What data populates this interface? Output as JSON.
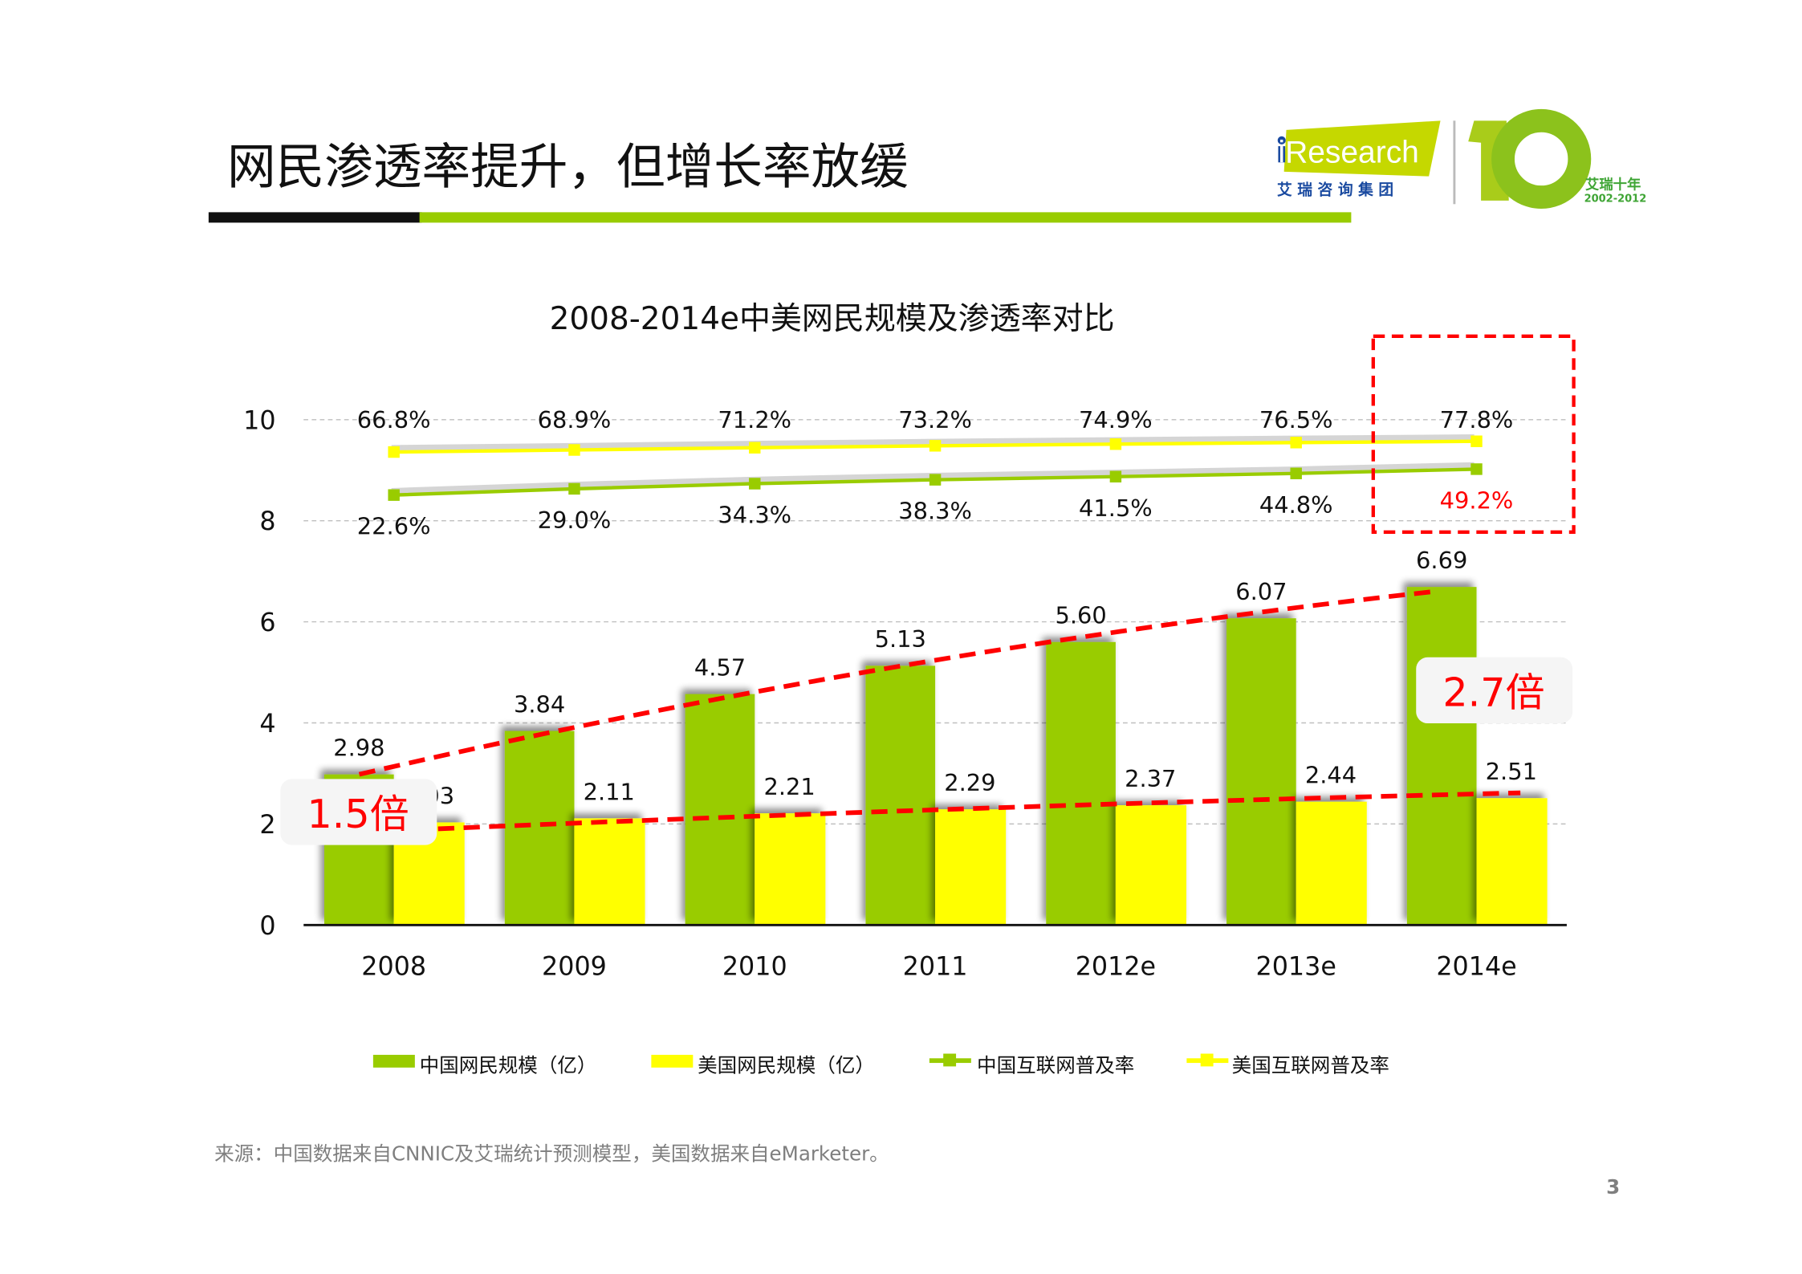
{
  "slide": {
    "title": "网民渗透率提升，但增长率放缓",
    "page_number": "3",
    "source": "来源：中国数据来自CNNIC及艾瑞统计预测模型，美国数据来自eMarketer。",
    "logo": {
      "brand": "iResearch",
      "brand_cn": "艾 瑞 咨 询 集 团",
      "anniversary": "10",
      "anniversary_cn": "艾瑞十年",
      "anniversary_years": "2002-2012"
    }
  },
  "colors": {
    "china": "#99cc00",
    "us": "#ffff00",
    "highlight": "#ff0000",
    "title_bar_dark": "#111111",
    "title_bar_green": "#99cc00"
  },
  "chart_data": {
    "type": "bar",
    "title": "2008-2014e中美网民规模及渗透率对比",
    "categories": [
      "2008",
      "2009",
      "2010",
      "2011",
      "2012e",
      "2013e",
      "2014e"
    ],
    "ylim": [
      0,
      10
    ],
    "yticks": [
      "0",
      "2",
      "4",
      "6",
      "8",
      "10"
    ],
    "grid": true,
    "legend_placement": "bottom",
    "series": [
      {
        "name": "中国网民规模（亿）",
        "kind": "bar",
        "color": "#99cc00",
        "values": [
          2.98,
          3.84,
          4.57,
          5.13,
          5.6,
          6.07,
          6.69
        ],
        "labels": [
          "2.98",
          "3.84",
          "4.57",
          "5.13",
          "5.60",
          "6.07",
          "6.69"
        ]
      },
      {
        "name": "美国网民规模（亿）",
        "kind": "bar",
        "color": "#ffff00",
        "values": [
          2.03,
          2.11,
          2.21,
          2.29,
          2.37,
          2.44,
          2.51
        ],
        "labels": [
          "2.03",
          "2.11",
          "2.21",
          "2.29",
          "2.37",
          "2.44",
          "2.51"
        ]
      },
      {
        "name": "中国互联网普及率",
        "kind": "line",
        "axis": "secondary",
        "color": "#99cc00",
        "values": [
          22.6,
          29.0,
          34.3,
          38.3,
          41.5,
          44.8,
          49.2
        ],
        "labels": [
          "22.6%",
          "29.0%",
          "34.3%",
          "38.3%",
          "41.5%",
          "44.8%",
          "49.2%"
        ]
      },
      {
        "name": "美国互联网普及率",
        "kind": "line",
        "axis": "secondary",
        "color": "#ffff00",
        "values": [
          66.8,
          68.9,
          71.2,
          73.2,
          74.9,
          76.5,
          77.8
        ],
        "labels": [
          "66.8%",
          "68.9%",
          "71.2%",
          "73.2%",
          "74.9%",
          "76.5%",
          "77.8%"
        ]
      }
    ],
    "annotations": [
      {
        "text": "1.5倍",
        "category": "2008"
      },
      {
        "text": "2.7倍",
        "category": "2014e"
      }
    ]
  }
}
